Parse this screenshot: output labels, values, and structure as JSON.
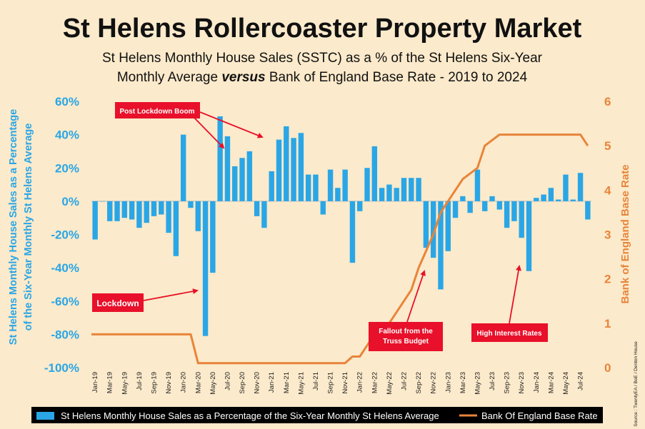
{
  "title": "St Helens Rollercoaster Property Market",
  "subtitle_line1": "St Helens Monthly House Sales (SSTC) as a % of the St Helens Six-Year",
  "subtitle_line2_a": "Monthly Average ",
  "subtitle_line2_b": "versus",
  "subtitle_line2_c": " Bank of England Base Rate - 2019 to 2024",
  "source": "Source : TwentyEA / BoE / Denton House",
  "colors": {
    "background": "#fbeacb",
    "bar": "#2aa6e6",
    "line": "#e8843a",
    "annotation": "#e8102a",
    "legend_bg": "#000000"
  },
  "chart_data": {
    "type": "bar+line",
    "ylabel": "St Helens Monthly House Sales as a Percentage of the Six-Year Monthly St Helens Average",
    "ylabel_line1": "St Helens Monthly House Sales as a Percentage",
    "ylabel_line2": "of the Six-Year Monthly St Helens Average",
    "y2label": "Bank of England Base Rate",
    "ylim": [
      -100,
      60
    ],
    "y2lim": [
      0,
      6
    ],
    "y_ticks": [
      "60%",
      "40%",
      "20%",
      "0%",
      "-20%",
      "-40%",
      "-60%",
      "-80%",
      "-100%"
    ],
    "y2_ticks": [
      "6",
      "5",
      "4",
      "3",
      "2",
      "1",
      "0"
    ],
    "x_tick_labels": [
      "Jan-19",
      "Mar-19",
      "May-19",
      "Jul-19",
      "Sep-19",
      "Nov-19",
      "Jan-20",
      "Mar-20",
      "May-20",
      "Jul-20",
      "Sep-20",
      "Nov-20",
      "Jan-21",
      "Mar-21",
      "May-21",
      "Jul-21",
      "Sep-21",
      "Nov-21",
      "Jan-22",
      "Mar-22",
      "May-22",
      "Jul-22",
      "Sep-22",
      "Nov-22",
      "Jan-23",
      "Mar-23",
      "May-23",
      "Jul-23",
      "Sep-23",
      "Nov-23",
      "Jan-24",
      "Mar-24",
      "May-24",
      "Jul-24"
    ],
    "series": [
      {
        "name": "St Helens Monthly House Sales as a Percentage of the Six-Year Monthly St Helens Average",
        "type": "bar",
        "axis": "left",
        "values": [
          -23,
          0,
          -12,
          -12,
          -10,
          -11,
          -16,
          -13,
          -9,
          -8,
          -19,
          -33,
          40,
          -4,
          -18,
          -81,
          -43,
          51,
          39,
          21,
          26,
          30,
          -9,
          -16,
          18,
          37,
          45,
          38,
          41,
          16,
          16,
          -8,
          19,
          8,
          19,
          -37,
          -6,
          20,
          33,
          8,
          10,
          8,
          14,
          14,
          14,
          -28,
          -34,
          -53,
          -30,
          -10,
          3,
          -7,
          19,
          -6,
          3,
          -5,
          -16,
          -12,
          -22,
          -42,
          2,
          4,
          8,
          1,
          16,
          1,
          17,
          -11
        ]
      },
      {
        "name": "Bank Of England Base Rate",
        "type": "line",
        "axis": "right",
        "x": [
          "Jan-19",
          "Feb-20",
          "Mar-20",
          "Apr-20",
          "Nov-21",
          "Dec-21",
          "Jan-22",
          "Feb-22",
          "Mar-22",
          "May-22",
          "Jun-22",
          "Aug-22",
          "Sep-22",
          "Nov-22",
          "Dec-22",
          "Feb-23",
          "Mar-23",
          "May-23",
          "Jun-23",
          "Aug-23",
          "Jul-24",
          "Aug-24"
        ],
        "values": [
          0.75,
          0.75,
          0.1,
          0.1,
          0.1,
          0.25,
          0.25,
          0.5,
          0.75,
          1.0,
          1.25,
          1.75,
          2.25,
          3.0,
          3.5,
          4.0,
          4.25,
          4.5,
          5.0,
          5.25,
          5.25,
          5.0
        ]
      }
    ],
    "annotations": [
      "Post Lockdown Boom",
      "Lockdown",
      "Fallout from the",
      "Truss Budget",
      "High Interest Rates"
    ],
    "legend": {
      "bar_label": "St Helens Monthly House Sales as a Percentage of the Six-Year Monthly St Helens Average",
      "line_label": "Bank Of England Base Rate",
      "placement": "bottom"
    }
  }
}
